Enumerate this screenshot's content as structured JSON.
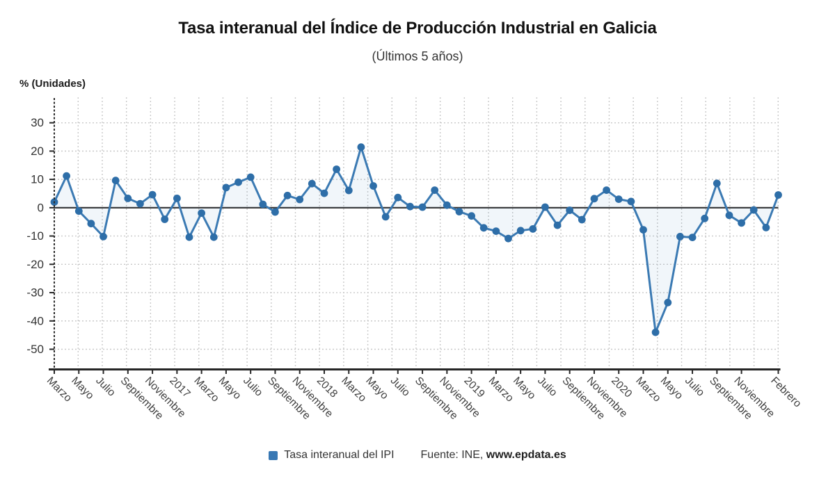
{
  "colors": {
    "series_line": "#3b7ab3",
    "series_marker": "#2e6ea8",
    "series_swatch": "#3878b4",
    "area_fill": "#3b7ab3",
    "area_opacity": 0.07,
    "grid": "#c9c9c9",
    "axis": "#262626",
    "zero_line": "#3a3a3a",
    "tick_text": "#333333",
    "x_label_text": "#3f3f3f"
  },
  "legend": {
    "series_label": "Tasa interanual del IPI",
    "source_prefix": "Fuente: INE, ",
    "source_site": "www.epdata.es"
  },
  "chart_data": {
    "type": "line",
    "title": "Tasa interanual del Índice de Producción Industrial en Galicia",
    "subtitle": "(Últimos 5 años)",
    "ylabel": "% (Unidades)",
    "xlabel": "",
    "series_name": "Tasa interanual del IPI",
    "legend_position": "bottom",
    "grid": true,
    "ylim": [
      -57,
      39
    ],
    "yticks": [
      30,
      20,
      10,
      0,
      -10,
      -20,
      -30,
      -40,
      -50
    ],
    "x": [
      "2016-03",
      "2016-04",
      "2016-05",
      "2016-06",
      "2016-07",
      "2016-08",
      "2016-09",
      "2016-10",
      "2016-11",
      "2016-12",
      "2017-01",
      "2017-02",
      "2017-03",
      "2017-04",
      "2017-05",
      "2017-06",
      "2017-07",
      "2017-08",
      "2017-09",
      "2017-10",
      "2017-11",
      "2017-12",
      "2018-01",
      "2018-02",
      "2018-03",
      "2018-04",
      "2018-05",
      "2018-06",
      "2018-07",
      "2018-08",
      "2018-09",
      "2018-10",
      "2018-11",
      "2018-12",
      "2019-01",
      "2019-02",
      "2019-03",
      "2019-04",
      "2019-05",
      "2019-06",
      "2019-07",
      "2019-08",
      "2019-09",
      "2019-10",
      "2019-11",
      "2019-12",
      "2020-01",
      "2020-02",
      "2020-03",
      "2020-04",
      "2020-05",
      "2020-06",
      "2020-07",
      "2020-08",
      "2020-09",
      "2020-10",
      "2020-11",
      "2020-12",
      "2021-01",
      "2021-02"
    ],
    "values": [
      2.0,
      11.2,
      -1.2,
      -5.6,
      -10.2,
      9.6,
      3.3,
      1.4,
      4.6,
      -4.1,
      3.3,
      -10.4,
      -1.9,
      -10.4,
      7.1,
      9.0,
      10.8,
      1.2,
      -1.5,
      4.3,
      2.9,
      8.5,
      5.1,
      13.6,
      6.1,
      21.4,
      7.7,
      -3.2,
      3.6,
      0.4,
      0.2,
      6.2,
      0.9,
      -1.4,
      -2.9,
      -7.1,
      -8.3,
      -10.9,
      -8.1,
      -7.5,
      0.2,
      -6.2,
      -0.9,
      -4.2,
      3.2,
      6.2,
      3.0,
      2.2,
      -7.8,
      -44.0,
      -33.5,
      -10.2,
      -10.5,
      -3.8,
      8.6,
      -2.7,
      -5.4,
      -0.8,
      -7.0,
      4.5
    ],
    "xticks": [
      {
        "i": 0,
        "label": "Marzo"
      },
      {
        "i": 2,
        "label": "Mayo"
      },
      {
        "i": 4,
        "label": "Julio"
      },
      {
        "i": 6,
        "label": "Septiembre"
      },
      {
        "i": 8,
        "label": "Noviembre"
      },
      {
        "i": 10,
        "label": "2017"
      },
      {
        "i": 12,
        "label": "Marzo"
      },
      {
        "i": 14,
        "label": "Mayo"
      },
      {
        "i": 16,
        "label": "Julio"
      },
      {
        "i": 18,
        "label": "Septiembre"
      },
      {
        "i": 20,
        "label": "Noviembre"
      },
      {
        "i": 22,
        "label": "2018"
      },
      {
        "i": 24,
        "label": "Marzo"
      },
      {
        "i": 26,
        "label": "Mayo"
      },
      {
        "i": 28,
        "label": "Julio"
      },
      {
        "i": 30,
        "label": "Septiembre"
      },
      {
        "i": 32,
        "label": "Noviembre"
      },
      {
        "i": 34,
        "label": "2019"
      },
      {
        "i": 36,
        "label": "Marzo"
      },
      {
        "i": 38,
        "label": "Mayo"
      },
      {
        "i": 40,
        "label": "Julio"
      },
      {
        "i": 42,
        "label": "Septiembre"
      },
      {
        "i": 44,
        "label": "Noviembre"
      },
      {
        "i": 46,
        "label": "2020"
      },
      {
        "i": 48,
        "label": "Marzo"
      },
      {
        "i": 50,
        "label": "Mayo"
      },
      {
        "i": 52,
        "label": "Julio"
      },
      {
        "i": 54,
        "label": "Septiembre"
      },
      {
        "i": 56,
        "label": "Noviembre"
      },
      {
        "i": 59,
        "label": "Febrero"
      }
    ]
  }
}
